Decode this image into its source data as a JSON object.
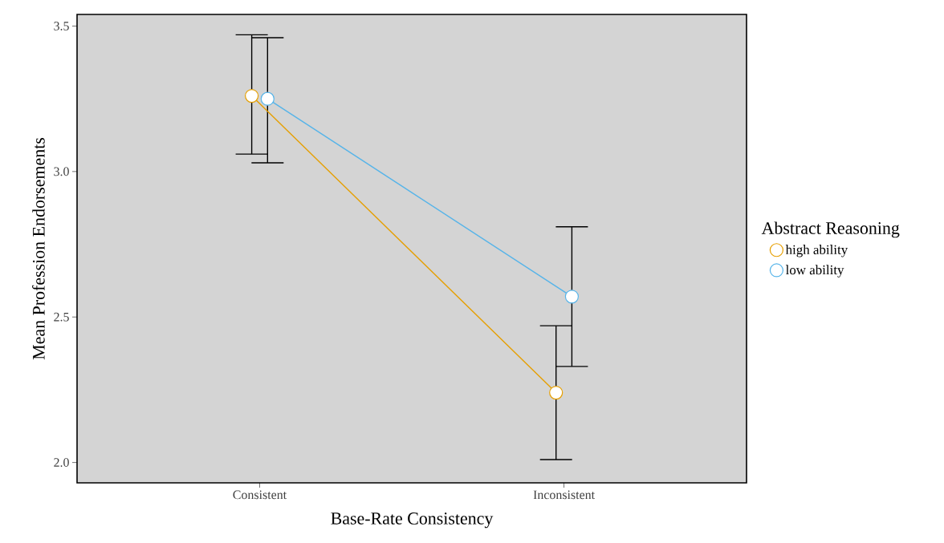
{
  "chart_data": {
    "type": "line",
    "xlabel": "Base-Rate Consistency",
    "ylabel": "Mean Profession Endorsements",
    "legend_title": "Abstract Reasoning",
    "legend": "right",
    "marker": "circle",
    "grid": false,
    "categories": [
      "Consistent",
      "Inconsistent"
    ],
    "ylim": [
      1.93,
      3.54
    ],
    "yticks": [
      {
        "value": 2,
        "label": "2.0"
      },
      {
        "value": 2.5,
        "label": "2.5"
      },
      {
        "value": 3,
        "label": "3.0"
      },
      {
        "value": 3.5,
        "label": "3.5"
      }
    ],
    "series": [
      {
        "name": "high ability",
        "color": "#e69f00",
        "values": [
          3.26,
          2.24
        ],
        "errors": [
          [
            3.06,
            3.47
          ],
          [
            2.01,
            2.47
          ]
        ]
      },
      {
        "name": "low ability",
        "color": "#56b4e9",
        "values": [
          3.25,
          2.57
        ],
        "errors": [
          [
            3.03,
            3.46
          ],
          [
            2.33,
            2.81
          ]
        ]
      }
    ]
  }
}
